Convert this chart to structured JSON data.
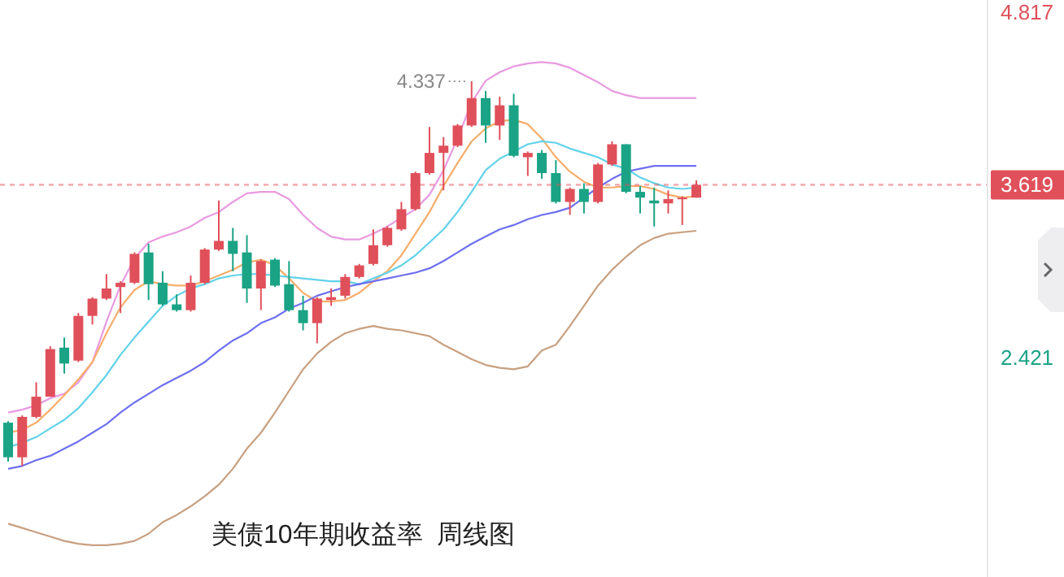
{
  "chart_data": {
    "type": "candlestick",
    "title": "美债10年期收益率  周线图",
    "categories": [
      null,
      null,
      null,
      null,
      null,
      null,
      null,
      null,
      null,
      null,
      null,
      null,
      null,
      null,
      null,
      null,
      null,
      null,
      null,
      null,
      null,
      null,
      null,
      null,
      null,
      null,
      null,
      null,
      null,
      null,
      null,
      null,
      null,
      null,
      null,
      null,
      null,
      null,
      null,
      null,
      null,
      null,
      null,
      null,
      null,
      null,
      null,
      null,
      null,
      null
    ],
    "ohlc": [
      [
        1.97,
        1.98,
        1.7,
        1.73
      ],
      [
        1.73,
        2.02,
        1.67,
        2.01
      ],
      [
        2.01,
        2.25,
        2.0,
        2.15
      ],
      [
        2.15,
        2.5,
        2.15,
        2.48
      ],
      [
        2.49,
        2.56,
        2.31,
        2.38
      ],
      [
        2.4,
        2.73,
        2.39,
        2.71
      ],
      [
        2.71,
        2.84,
        2.65,
        2.83
      ],
      [
        2.83,
        3.0,
        2.82,
        2.9
      ],
      [
        2.91,
        2.95,
        2.73,
        2.94
      ],
      [
        2.94,
        3.15,
        2.93,
        3.14
      ],
      [
        3.15,
        3.21,
        2.82,
        2.93
      ],
      [
        2.94,
        3.02,
        2.78,
        2.79
      ],
      [
        2.79,
        2.86,
        2.74,
        2.75
      ],
      [
        2.75,
        2.99,
        2.74,
        2.94
      ],
      [
        2.94,
        3.18,
        2.93,
        3.17
      ],
      [
        3.17,
        3.51,
        3.16,
        3.23
      ],
      [
        3.23,
        3.32,
        3.02,
        3.14
      ],
      [
        3.15,
        3.27,
        2.8,
        2.9
      ],
      [
        2.9,
        3.1,
        2.75,
        3.09
      ],
      [
        3.1,
        3.11,
        2.91,
        2.92
      ],
      [
        2.93,
        3.09,
        2.74,
        2.75
      ],
      [
        2.75,
        2.85,
        2.61,
        2.66
      ],
      [
        2.66,
        2.84,
        2.52,
        2.83
      ],
      [
        2.82,
        2.9,
        2.78,
        2.84
      ],
      [
        2.85,
        3.0,
        2.83,
        2.98
      ],
      [
        2.98,
        3.07,
        2.97,
        3.06
      ],
      [
        3.07,
        3.31,
        3.06,
        3.2
      ],
      [
        3.2,
        3.33,
        3.19,
        3.32
      ],
      [
        3.31,
        3.5,
        3.3,
        3.45
      ],
      [
        3.45,
        3.71,
        3.44,
        3.7
      ],
      [
        3.7,
        4.02,
        3.69,
        3.84
      ],
      [
        3.84,
        3.95,
        3.58,
        3.89
      ],
      [
        3.89,
        4.04,
        3.88,
        4.03
      ],
      [
        4.03,
        4.337,
        4.02,
        4.22
      ],
      [
        4.22,
        4.27,
        3.91,
        4.03
      ],
      [
        4.03,
        4.23,
        3.93,
        4.17
      ],
      [
        4.17,
        4.25,
        3.81,
        3.82
      ],
      [
        3.81,
        3.85,
        3.68,
        3.84
      ],
      [
        3.84,
        3.86,
        3.66,
        3.7
      ],
      [
        3.7,
        3.79,
        3.49,
        3.5
      ],
      [
        3.5,
        3.6,
        3.41,
        3.59
      ],
      [
        3.59,
        3.63,
        3.42,
        3.5
      ],
      [
        3.5,
        3.77,
        3.49,
        3.76
      ],
      [
        3.76,
        3.92,
        3.75,
        3.9
      ],
      [
        3.9,
        3.9,
        3.56,
        3.57
      ],
      [
        3.57,
        3.61,
        3.42,
        3.53
      ],
      [
        3.51,
        3.6,
        3.33,
        3.49
      ],
      [
        3.49,
        3.58,
        3.42,
        3.52
      ],
      [
        3.52,
        3.54,
        3.34,
        3.53
      ],
      [
        3.53,
        3.65,
        3.53,
        3.619
      ]
    ],
    "series": [
      {
        "type": "line",
        "color": "#e89ae0",
        "values": [
          2.04,
          2.06,
          2.09,
          2.14,
          2.17,
          2.25,
          2.39,
          2.67,
          2.92,
          3.11,
          3.22,
          3.26,
          3.29,
          3.33,
          3.39,
          3.43,
          3.5,
          3.56,
          3.57,
          3.57,
          3.52,
          3.41,
          3.32,
          3.26,
          3.24,
          3.24,
          3.28,
          3.33,
          3.39,
          3.45,
          3.55,
          3.72,
          3.94,
          4.19,
          4.34,
          4.4,
          4.44,
          4.46,
          4.47,
          4.46,
          4.43,
          4.38,
          4.33,
          4.27,
          4.24,
          4.22,
          4.22,
          4.22,
          4.22,
          4.22
        ]
      },
      {
        "type": "line",
        "color": "#c8a080",
        "values": [
          1.27,
          1.24,
          1.21,
          1.18,
          1.15,
          1.13,
          1.12,
          1.12,
          1.13,
          1.15,
          1.2,
          1.28,
          1.33,
          1.39,
          1.46,
          1.54,
          1.65,
          1.79,
          1.9,
          2.04,
          2.19,
          2.34,
          2.45,
          2.53,
          2.59,
          2.62,
          2.64,
          2.62,
          2.61,
          2.59,
          2.57,
          2.51,
          2.46,
          2.41,
          2.37,
          2.35,
          2.34,
          2.36,
          2.47,
          2.51,
          2.64,
          2.78,
          2.92,
          3.03,
          3.12,
          3.2,
          3.25,
          3.28,
          3.29,
          3.3
        ]
      },
      {
        "type": "line",
        "color": "#f7ad6a",
        "values": [
          1.9,
          1.92,
          1.97,
          2.06,
          2.16,
          2.27,
          2.39,
          2.59,
          2.77,
          2.89,
          2.95,
          2.93,
          2.92,
          2.92,
          2.95,
          2.99,
          3.03,
          3.08,
          3.1,
          3.06,
          2.97,
          2.87,
          2.81,
          2.81,
          2.82,
          2.87,
          2.95,
          3.02,
          3.13,
          3.28,
          3.43,
          3.61,
          3.77,
          3.92,
          4.01,
          4.06,
          4.07,
          4.04,
          3.94,
          3.81,
          3.71,
          3.64,
          3.6,
          3.6,
          3.61,
          3.61,
          3.59,
          3.55,
          3.53,
          3.54
        ]
      },
      {
        "type": "line",
        "color": "#62d2ea",
        "values": [
          1.8,
          1.83,
          1.87,
          1.93,
          1.99,
          2.07,
          2.18,
          2.3,
          2.44,
          2.56,
          2.67,
          2.78,
          2.85,
          2.9,
          2.93,
          2.97,
          2.99,
          3.0,
          3.0,
          2.99,
          2.98,
          2.97,
          2.96,
          2.95,
          2.95,
          2.93,
          2.97,
          3.01,
          3.06,
          3.13,
          3.22,
          3.31,
          3.43,
          3.57,
          3.72,
          3.8,
          3.85,
          3.9,
          3.92,
          3.91,
          3.87,
          3.84,
          3.81,
          3.76,
          3.73,
          3.67,
          3.63,
          3.6,
          3.59,
          3.6
        ]
      },
      {
        "type": "line",
        "color": "#6e6ff0",
        "values": [
          1.65,
          1.67,
          1.71,
          1.74,
          1.79,
          1.84,
          1.9,
          1.96,
          2.04,
          2.11,
          2.17,
          2.23,
          2.28,
          2.33,
          2.39,
          2.47,
          2.54,
          2.59,
          2.66,
          2.7,
          2.76,
          2.8,
          2.85,
          2.88,
          2.91,
          2.93,
          2.95,
          2.97,
          2.99,
          3.01,
          3.04,
          3.09,
          3.15,
          3.21,
          3.26,
          3.31,
          3.34,
          3.38,
          3.41,
          3.43,
          3.46,
          3.53,
          3.6,
          3.66,
          3.71,
          3.73,
          3.75,
          3.75,
          3.75,
          3.75
        ]
      }
    ],
    "ylim": [
      0.9,
      4.9
    ],
    "yticks": [
      4.817,
      2.421
    ],
    "ref_lines": [
      {
        "axis": "y",
        "value": 3.619,
        "label": "3.619",
        "color": "#e0505a",
        "line_style": "dotted"
      }
    ],
    "annotations": [
      "4.337"
    ],
    "grid": false
  }
}
